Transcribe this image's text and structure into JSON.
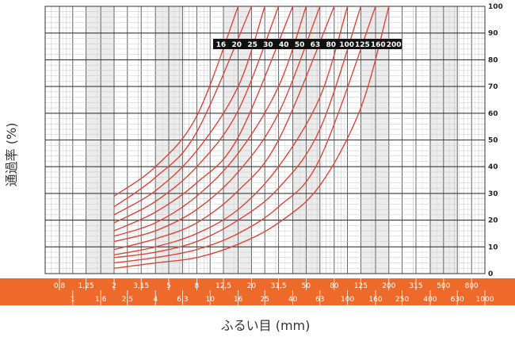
{
  "chart_data": {
    "type": "line",
    "title": "",
    "xlabel": "ふるい目 (mm)",
    "ylabel": "通過率 (%)",
    "x_scale": "log",
    "xlim": [
      0.63,
      1000
    ],
    "ylim": [
      0,
      100
    ],
    "x_ticks_upper": [
      "0,8",
      "1,25",
      "2",
      "3,15",
      "5",
      "8",
      "12,5",
      "20",
      "31,5",
      "50",
      "80",
      "125",
      "200",
      "315",
      "500",
      "800"
    ],
    "x_ticks_lower": [
      "1",
      "1,6",
      "2,5",
      "4",
      "6,3",
      "10",
      "16",
      "25",
      "40",
      "63",
      "100",
      "160",
      "250",
      "400",
      "630",
      "1000"
    ],
    "y_ticks": [
      "0",
      "10",
      "20",
      "30",
      "40",
      "50",
      "60",
      "70",
      "80",
      "90",
      "100"
    ],
    "grid": true,
    "legend_labels": [
      "16",
      "20",
      "25",
      "30",
      "40",
      "50",
      "63",
      "80",
      "100",
      "125",
      "160",
      "200"
    ],
    "legend_position": "top-right",
    "series_color": "#e0453a",
    "band_color": "#ee6a2a",
    "series": [
      {
        "x": [
          2,
          4,
          8,
          16
        ],
        "y": [
          29,
          40,
          59,
          100
        ]
      },
      {
        "x": [
          2,
          4,
          8,
          20
        ],
        "y": [
          25,
          36,
          53,
          100
        ]
      },
      {
        "x": [
          2,
          4,
          8,
          16,
          25
        ],
        "y": [
          22,
          31,
          46,
          70,
          100
        ]
      },
      {
        "x": [
          2,
          4,
          8,
          16,
          31.5
        ],
        "y": [
          19,
          27,
          40,
          61,
          100
        ]
      },
      {
        "x": [
          2,
          4,
          8,
          16,
          40
        ],
        "y": [
          16,
          23,
          34,
          51,
          100
        ]
      },
      {
        "x": [
          2,
          4,
          8,
          16,
          31.5,
          50
        ],
        "y": [
          14,
          19,
          29,
          45,
          70,
          100
        ]
      },
      {
        "x": [
          2,
          4,
          8,
          16,
          31.5,
          63
        ],
        "y": [
          12,
          16,
          24,
          38,
          60,
          100
        ]
      },
      {
        "x": [
          2,
          4,
          8,
          16,
          31.5,
          80
        ],
        "y": [
          9,
          13,
          19,
          31,
          50,
          100
        ]
      },
      {
        "x": [
          2,
          4,
          8,
          16,
          31.5,
          63,
          100
        ],
        "y": [
          7,
          10,
          15,
          24,
          40,
          66,
          100
        ]
      },
      {
        "x": [
          2,
          4,
          8,
          16,
          31.5,
          63,
          125
        ],
        "y": [
          6,
          8,
          12,
          20,
          32,
          54,
          100
        ]
      },
      {
        "x": [
          2,
          4,
          8,
          16,
          31.5,
          63,
          160
        ],
        "y": [
          4,
          6,
          9,
          15,
          25,
          43,
          100
        ]
      },
      {
        "x": [
          2,
          4,
          8,
          16,
          31.5,
          63,
          125,
          200
        ],
        "y": [
          2,
          4,
          6,
          11,
          19,
          33,
          62,
          100
        ]
      }
    ]
  }
}
